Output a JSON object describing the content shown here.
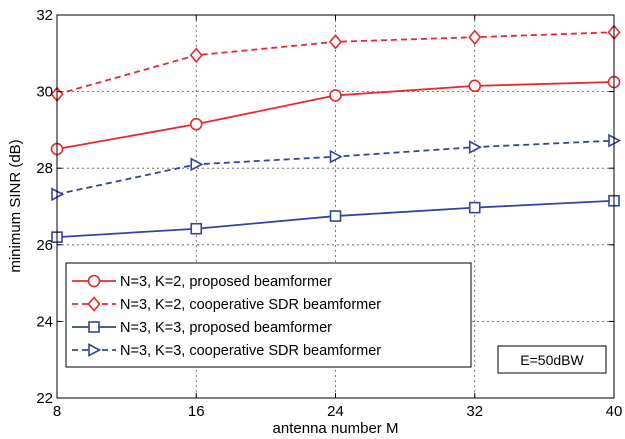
{
  "chart_data": {
    "type": "line",
    "title": "",
    "xlabel": "antenna number M",
    "ylabel": "minimum SINR (dB)",
    "xlim": [
      8,
      40
    ],
    "ylim": [
      22,
      32
    ],
    "xticks": [
      8,
      16,
      24,
      32,
      40
    ],
    "yticks": [
      22,
      24,
      26,
      28,
      30,
      32
    ],
    "x": [
      8,
      16,
      24,
      32,
      40
    ],
    "grid": true,
    "legend_position": "bottom-left",
    "annotation": "E=50dBW",
    "series": [
      {
        "name": "N=3, K=2, proposed beamformer",
        "values": [
          28.5,
          29.15,
          29.9,
          30.15,
          30.25
        ],
        "color": "#e8282b",
        "dash": false,
        "marker": "circle"
      },
      {
        "name": "N=3, K=2, cooperative SDR beamformer",
        "values": [
          29.93,
          30.95,
          31.3,
          31.42,
          31.55
        ],
        "color": "#e8282b",
        "dash": true,
        "marker": "diamond"
      },
      {
        "name": "N=3, K=3, proposed beamformer",
        "values": [
          26.2,
          26.42,
          26.75,
          26.97,
          27.15
        ],
        "color": "#3344a0",
        "dash": false,
        "marker": "square"
      },
      {
        "name": "N=3, K=3, cooperative SDR beamformer",
        "values": [
          27.32,
          28.1,
          28.3,
          28.55,
          28.72
        ],
        "color": "#3344a0",
        "dash": true,
        "marker": "triangle-right"
      }
    ]
  }
}
